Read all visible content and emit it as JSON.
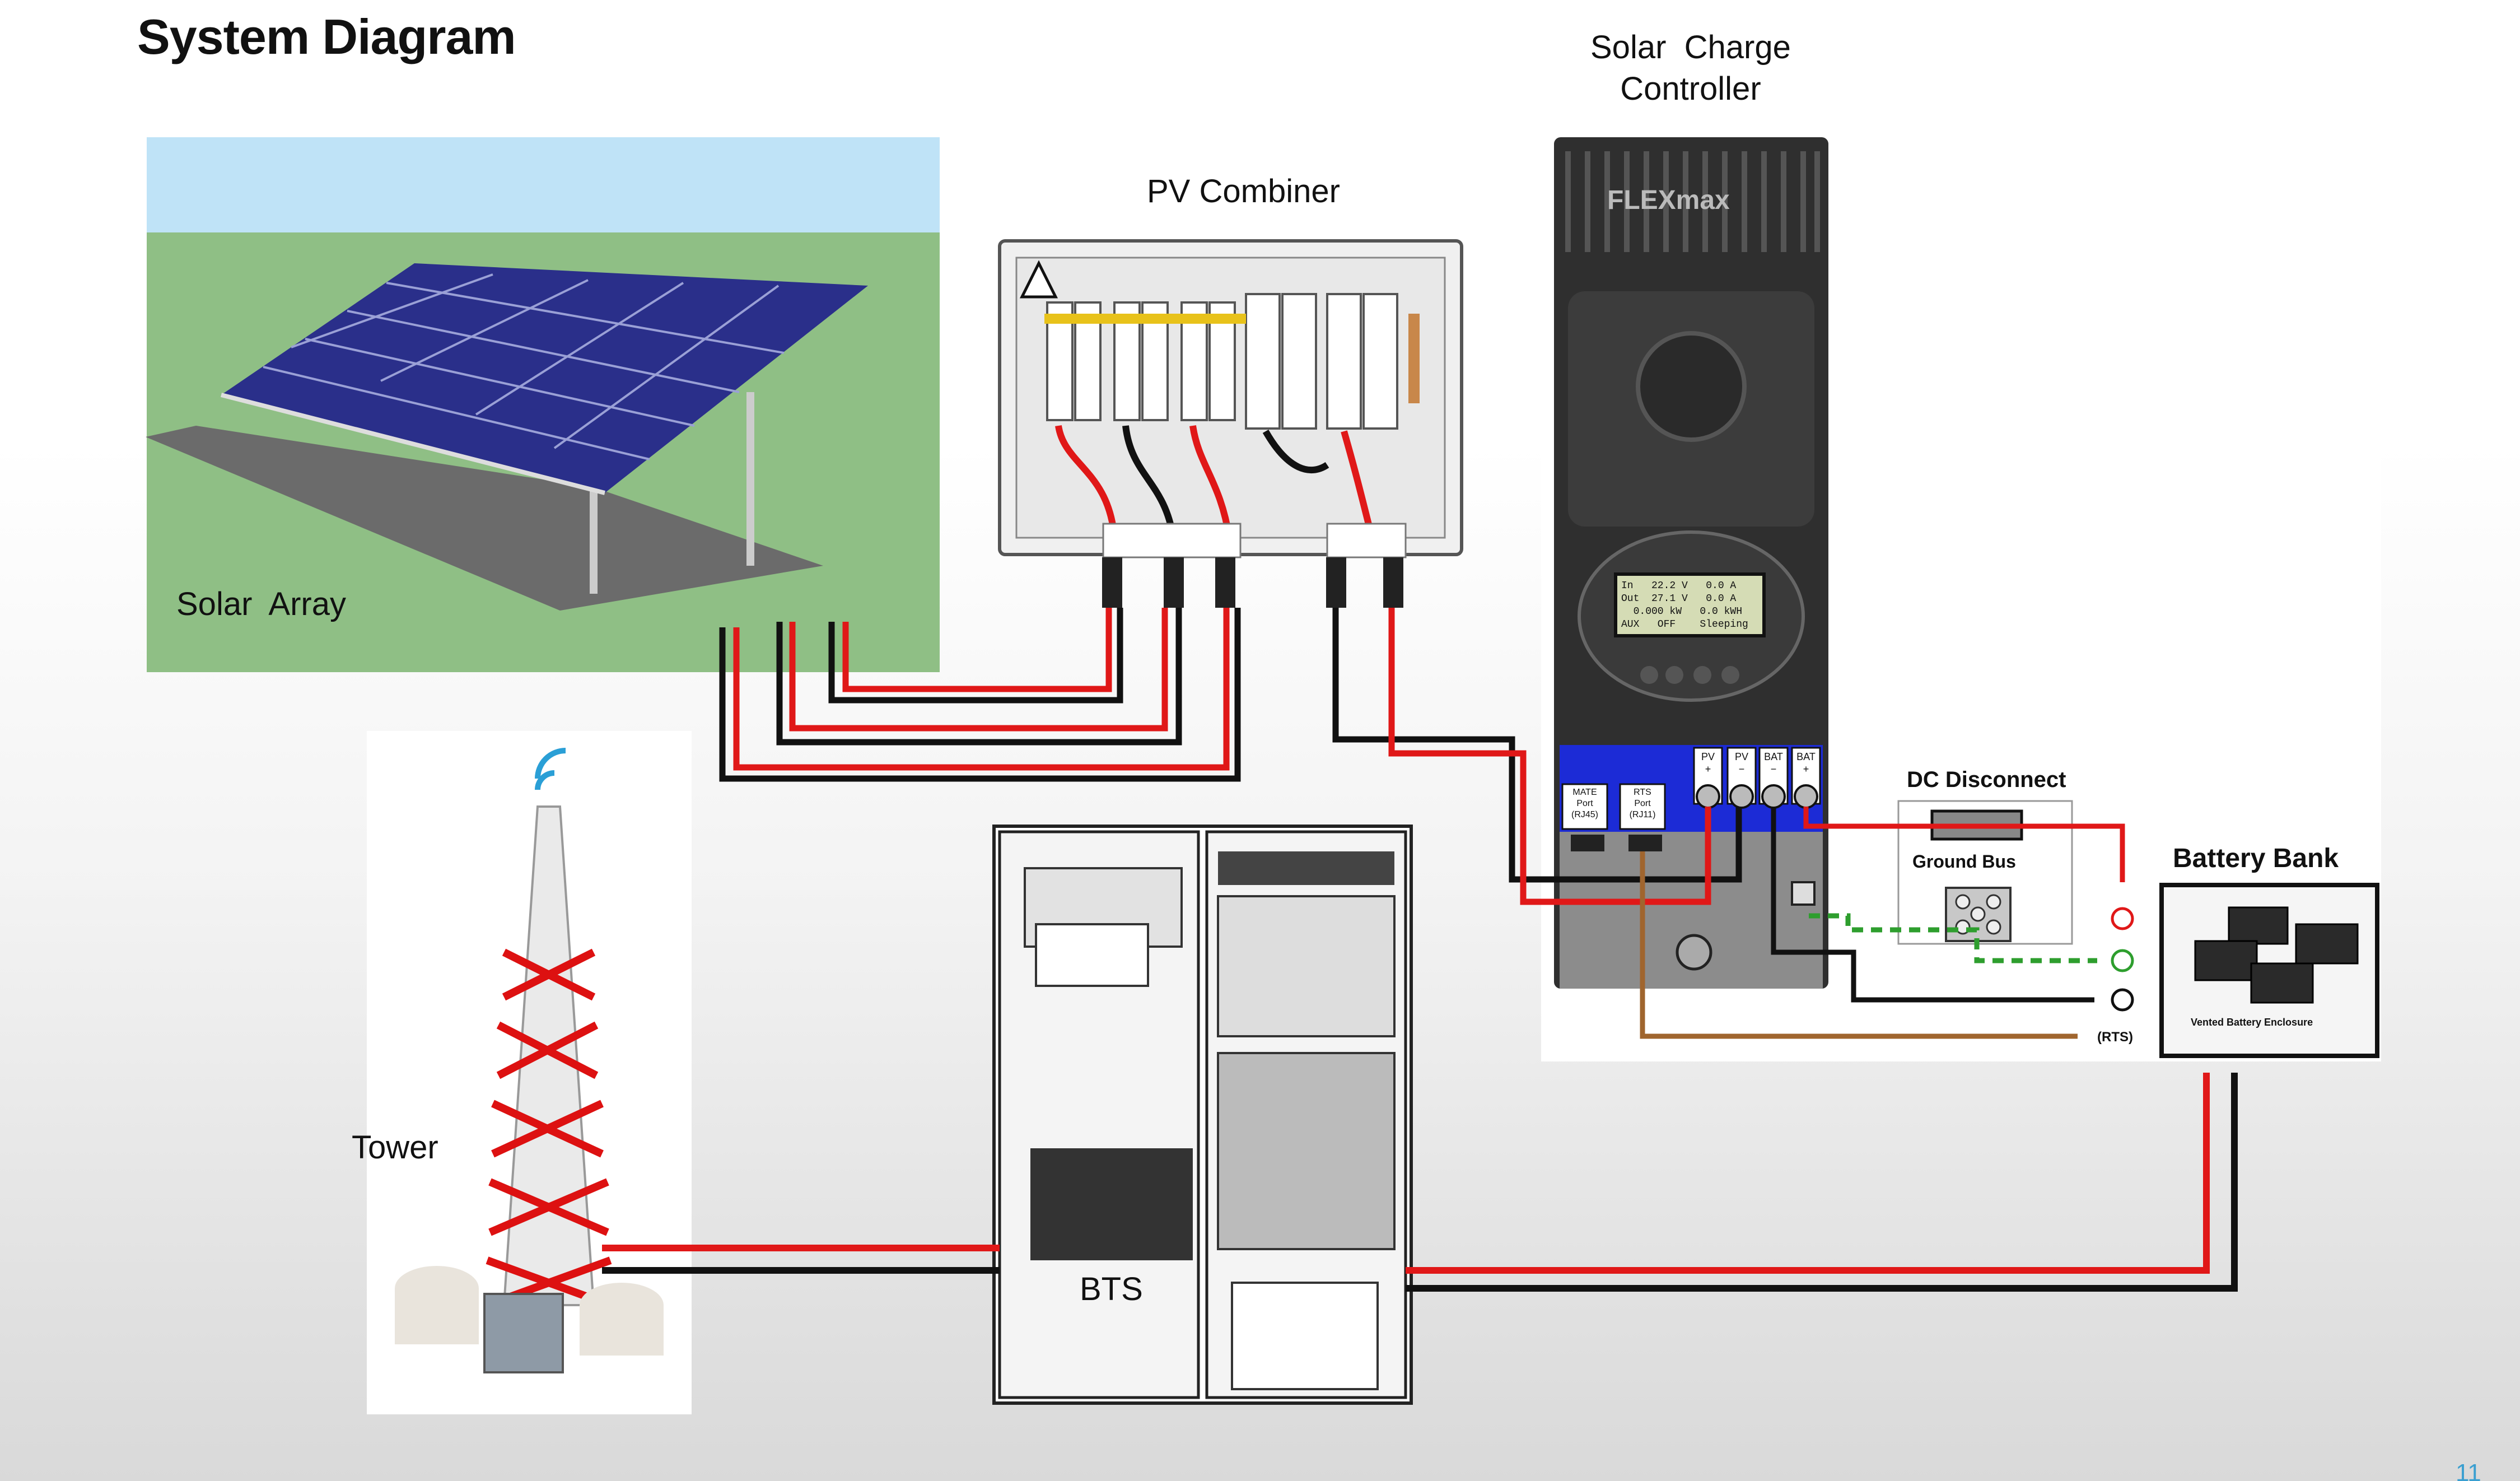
{
  "page": {
    "title": "System Diagram",
    "page_number": "11"
  },
  "components": {
    "solar_array": "Solar  Array",
    "pv_combiner": "PV Combiner",
    "charge_controller": "Solar  Charge\nController",
    "controller_brand": "FLEXmax",
    "dc_disconnect": "DC Disconnect",
    "ground_bus": "Ground Bus",
    "battery_bank": "Battery Bank",
    "battery_enclosure": "Vented Battery Enclosure",
    "tower": "Tower",
    "bts": "BTS",
    "rts": "(RTS)"
  },
  "ports": {
    "mate": "MATE\nPort\n(RJ45)",
    "rts_port": "RTS\nPort\n(RJ11)",
    "pv_plus": "PV\n+",
    "pv_minus": "PV\n−",
    "bat_minus": "BAT\n−",
    "bat_plus": "BAT\n+"
  },
  "display": {
    "line1": "In   22.2 V   0.0 A",
    "line2": "Out  27.1 V   0.0 A",
    "line3": "  0.000 kW   0.0 kWH",
    "line4": "AUX   OFF    Sleeping"
  },
  "colors": {
    "positive_wire": "#e01818",
    "negative_wire": "#111111",
    "ground_wire": "#2e9e2e",
    "rts_wire": "#a0652e",
    "controller_blue": "#1c2bd6"
  }
}
